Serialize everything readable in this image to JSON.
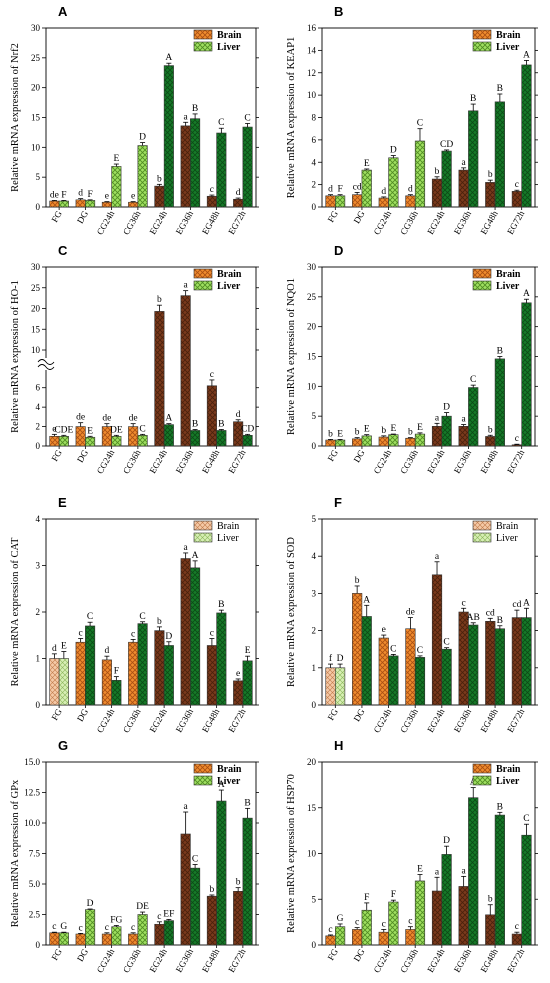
{
  "figure": {
    "legend_colors": {
      "brain_fill": "#f08c2e",
      "brain_dark": "#7a3a1c",
      "liver_fill": "#9fe060",
      "liver_dark": "#167a28"
    }
  },
  "chart_data": [
    {
      "type": "bar",
      "panel": "A",
      "ylabel": "Relative mRNA expression of Nrf2",
      "ylim": [
        0,
        30
      ],
      "yticks": [
        0,
        5,
        10,
        15,
        20,
        25,
        30
      ],
      "categories": [
        "FG",
        "DG",
        "CG24h",
        "CG36h",
        "EG24h",
        "EG36h",
        "EG48h",
        "EG72h"
      ],
      "legend": [
        "Brain",
        "Liver"
      ],
      "series": [
        {
          "name": "Brain",
          "values": [
            1.0,
            1.2,
            0.8,
            0.8,
            3.5,
            13.6,
            1.8,
            1.3
          ],
          "errors": [
            0.1,
            0.2,
            0.1,
            0.1,
            0.3,
            0.6,
            0.2,
            0.2
          ],
          "sig": [
            "de",
            "d",
            "e",
            "e",
            "b",
            "a",
            "c",
            "d"
          ]
        },
        {
          "name": "Liver",
          "values": [
            1.0,
            1.1,
            6.8,
            10.3,
            23.7,
            14.8,
            12.4,
            13.4
          ],
          "errors": [
            0.1,
            0.1,
            0.4,
            0.5,
            0.4,
            0.8,
            0.8,
            0.6
          ],
          "sig": [
            "F",
            "F",
            "E",
            "D",
            "A",
            "B",
            "C",
            "C"
          ]
        }
      ]
    },
    {
      "type": "bar",
      "panel": "B",
      "ylabel": "Relative mRNA expression of KEAP1",
      "ylim": [
        0,
        16
      ],
      "yticks": [
        0,
        2,
        4,
        6,
        8,
        10,
        12,
        14,
        16
      ],
      "categories": [
        "FG",
        "DG",
        "CG24h",
        "CG36h",
        "EG24h",
        "EG36h",
        "EG48h",
        "EG72h"
      ],
      "legend": [
        "Brain",
        "Liver"
      ],
      "series": [
        {
          "name": "Brain",
          "values": [
            1.0,
            1.1,
            0.8,
            1.0,
            2.5,
            3.3,
            2.2,
            1.4
          ],
          "errors": [
            0.1,
            0.2,
            0.1,
            0.1,
            0.2,
            0.2,
            0.2,
            0.1
          ],
          "sig": [
            "d",
            "cd",
            "d",
            "d",
            "b",
            "a",
            "b",
            "c"
          ]
        },
        {
          "name": "Liver",
          "values": [
            1.0,
            3.3,
            4.4,
            5.9,
            5.0,
            8.6,
            9.4,
            12.7
          ],
          "errors": [
            0.1,
            0.1,
            0.2,
            1.1,
            0.1,
            0.6,
            0.7,
            0.4
          ],
          "sig": [
            "F",
            "E",
            "D",
            "C",
            "CD",
            "B",
            "B",
            "A"
          ]
        }
      ]
    },
    {
      "type": "bar",
      "panel": "C",
      "ylabel": "Relative mRNA expression of HO-1",
      "axis_break": true,
      "yticks": [
        0,
        2,
        4,
        6,
        10,
        15,
        20,
        25,
        30
      ],
      "categories": [
        "FG",
        "DG",
        "CG24h",
        "CG36h",
        "EG24h",
        "EG36h",
        "EG48h",
        "EG72h"
      ],
      "legend": [
        "Brain",
        "Liver"
      ],
      "series": [
        {
          "name": "Brain",
          "values": [
            1.0,
            2.0,
            2.0,
            2.0,
            19.3,
            23.1,
            6.2,
            2.5
          ],
          "errors": [
            0.2,
            0.4,
            0.3,
            0.3,
            1.5,
            1.2,
            0.6,
            0.2
          ],
          "sig": [
            "e",
            "de",
            "de",
            "de",
            "b",
            "a",
            "c",
            "d"
          ]
        },
        {
          "name": "Liver",
          "values": [
            1.0,
            0.9,
            1.0,
            1.1,
            2.2,
            1.6,
            1.6,
            1.1
          ],
          "errors": [
            0.1,
            0.1,
            0.1,
            0.1,
            0.1,
            0.1,
            0.1,
            0.1
          ],
          "sig": [
            "CDE",
            "E",
            "DE",
            "C",
            "A",
            "B",
            "B",
            "CD"
          ]
        }
      ]
    },
    {
      "type": "bar",
      "panel": "D",
      "ylabel": "Relative mRNA expression of NQO1",
      "ylim": [
        0,
        30
      ],
      "yticks": [
        0,
        5,
        10,
        15,
        20,
        25,
        30
      ],
      "categories": [
        "FG",
        "DG",
        "CG24h",
        "CG36h",
        "EG24h",
        "EG36h",
        "EG48h",
        "EG72h"
      ],
      "legend": [
        "Brain",
        "Liver"
      ],
      "series": [
        {
          "name": "Brain",
          "values": [
            1.0,
            1.2,
            1.5,
            1.3,
            3.3,
            3.3,
            1.6,
            0.2
          ],
          "errors": [
            0.1,
            0.2,
            0.2,
            0.1,
            0.5,
            0.3,
            0.2,
            0.1
          ],
          "sig": [
            "b",
            "b",
            "b",
            "b",
            "a",
            "a",
            "b",
            "c"
          ]
        },
        {
          "name": "Liver",
          "values": [
            1.0,
            1.7,
            1.9,
            2.0,
            5.0,
            9.8,
            14.6,
            24.0
          ],
          "errors": [
            0.1,
            0.2,
            0.1,
            0.2,
            0.6,
            0.4,
            0.4,
            0.6
          ],
          "sig": [
            "E",
            "E",
            "E",
            "E",
            "D",
            "C",
            "B",
            "A"
          ]
        }
      ]
    },
    {
      "type": "bar",
      "panel": "E",
      "ylabel": "Relative mRNA expression of CAT",
      "ylim": [
        0,
        4
      ],
      "yticks": [
        0,
        1,
        2,
        3,
        4
      ],
      "categories": [
        "FG",
        "DG",
        "CG24h",
        "CG36h",
        "EG24h",
        "EG36h",
        "EG48h",
        "EG72h"
      ],
      "legend": [
        "Brain",
        "Liver"
      ],
      "series": [
        {
          "name": "Brain",
          "values": [
            1.0,
            1.35,
            0.97,
            1.35,
            1.6,
            3.15,
            1.28,
            0.52
          ],
          "errors": [
            0.1,
            0.08,
            0.08,
            0.06,
            0.08,
            0.12,
            0.15,
            0.04
          ],
          "sig": [
            "d",
            "c",
            "d",
            "c",
            "b",
            "a",
            "c",
            "e"
          ]
        },
        {
          "name": "Liver",
          "values": [
            1.0,
            1.7,
            0.53,
            1.75,
            1.28,
            2.95,
            1.98,
            0.95
          ],
          "errors": [
            0.15,
            0.08,
            0.08,
            0.04,
            0.08,
            0.15,
            0.06,
            0.1
          ],
          "sig": [
            "E",
            "C",
            "F",
            "C",
            "D",
            "A",
            "B",
            "E"
          ]
        }
      ]
    },
    {
      "type": "bar",
      "panel": "F",
      "ylabel": "Relative mRNA expression of SOD",
      "ylim": [
        0,
        5
      ],
      "yticks": [
        0,
        1,
        2,
        3,
        4,
        5
      ],
      "categories": [
        "FG",
        "DG",
        "CG24h",
        "CG36h",
        "EG24h",
        "EG36h",
        "EG48h",
        "EG72h"
      ],
      "legend": [
        "Brain",
        "Liver"
      ],
      "series": [
        {
          "name": "Brain",
          "values": [
            1.0,
            3.0,
            1.8,
            2.05,
            3.5,
            2.5,
            2.25,
            2.35
          ],
          "errors": [
            0.1,
            0.2,
            0.08,
            0.3,
            0.35,
            0.1,
            0.08,
            0.2
          ],
          "sig": [
            "f",
            "b",
            "e",
            "de",
            "a",
            "c",
            "cd",
            "cd"
          ]
        },
        {
          "name": "Liver",
          "values": [
            1.0,
            2.38,
            1.32,
            1.28,
            1.5,
            2.15,
            2.05,
            2.35
          ],
          "errors": [
            0.1,
            0.3,
            0.04,
            0.04,
            0.04,
            0.06,
            0.08,
            0.25
          ],
          "sig": [
            "D",
            "A",
            "C",
            "C",
            "C",
            "AB",
            "B",
            "A"
          ]
        }
      ]
    },
    {
      "type": "bar",
      "panel": "G",
      "ylabel": "Relative mRNA expression of GPx",
      "ylim": [
        0,
        15
      ],
      "yticks": [
        0,
        2.5,
        5.0,
        7.5,
        10.0,
        12.5,
        15.0
      ],
      "categories": [
        "FG",
        "DG",
        "CG24h",
        "CG36h",
        "EG24h",
        "EG36h",
        "EG48h",
        "EG72h"
      ],
      "legend": [
        "Brain",
        "Liver"
      ],
      "series": [
        {
          "name": "Brain",
          "values": [
            1.0,
            0.9,
            0.9,
            0.9,
            1.7,
            9.1,
            4.0,
            4.4
          ],
          "errors": [
            0.05,
            0.05,
            0.1,
            0.1,
            0.2,
            1.8,
            0.1,
            0.3
          ],
          "sig": [
            "c",
            "c",
            "c",
            "c",
            "c",
            "a",
            "b",
            "b"
          ]
        },
        {
          "name": "Liver",
          "values": [
            1.0,
            2.9,
            1.5,
            2.5,
            2.0,
            6.3,
            11.8,
            10.4
          ],
          "errors": [
            0.05,
            0.05,
            0.1,
            0.2,
            0.1,
            0.3,
            0.9,
            0.8
          ],
          "sig": [
            "G",
            "D",
            "FG",
            "DE",
            "EF",
            "C",
            "A",
            "B"
          ]
        }
      ]
    },
    {
      "type": "bar",
      "panel": "H",
      "ylabel": "Relative mRNA expression of HSP70",
      "ylim": [
        0,
        20
      ],
      "yticks": [
        0,
        5,
        10,
        15,
        20
      ],
      "categories": [
        "FG",
        "DG",
        "CG24h",
        "CG36h",
        "EG24h",
        "EG36h",
        "EG48h",
        "EG72h"
      ],
      "legend": [
        "Brain",
        "Liver"
      ],
      "series": [
        {
          "name": "Brain",
          "values": [
            1.0,
            1.7,
            1.4,
            1.7,
            5.9,
            6.4,
            3.3,
            1.2
          ],
          "errors": [
            0.1,
            0.2,
            0.3,
            0.3,
            1.5,
            1.1,
            1.1,
            0.2
          ],
          "sig": [
            "c",
            "c",
            "c",
            "c",
            "a",
            "a",
            "b",
            "c"
          ]
        },
        {
          "name": "Liver",
          "values": [
            2.0,
            3.8,
            4.7,
            7.0,
            9.9,
            16.1,
            14.2,
            12.0
          ],
          "errors": [
            0.3,
            0.8,
            0.2,
            0.7,
            0.9,
            1.1,
            0.3,
            1.2
          ],
          "sig": [
            "G",
            "F",
            "F",
            "E",
            "D",
            "A",
            "B",
            "C"
          ]
        }
      ]
    }
  ]
}
